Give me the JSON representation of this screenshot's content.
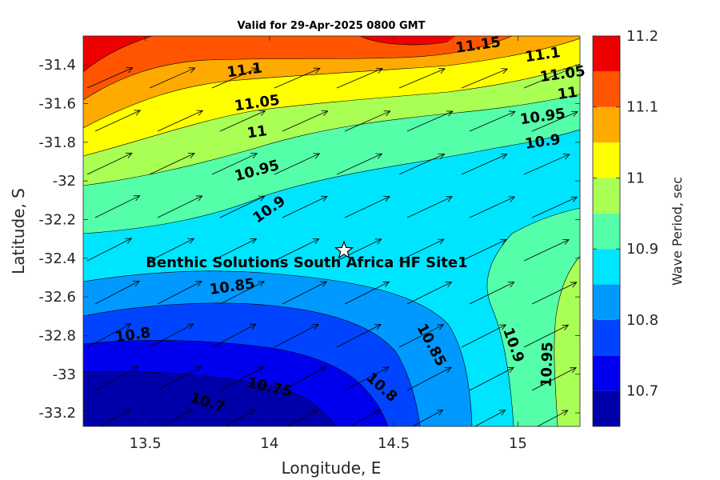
{
  "chart_data": {
    "type": "contour",
    "title": "Valid for 29-Apr-2025 0800 GMT",
    "xlabel": "Longitude, E",
    "ylabel": "Latitude, S",
    "xlim": [
      13.25,
      15.25
    ],
    "ylim": [
      -33.27,
      -31.25
    ],
    "x_ticks": [
      "13.5",
      "14",
      "14.5",
      "15"
    ],
    "x_tick_values": [
      13.5,
      14.0,
      14.5,
      15.0
    ],
    "y_ticks": [
      "-31.4",
      "-31.6",
      "-31.8",
      "-32",
      "-32.2",
      "-32.4",
      "-32.6",
      "-32.8",
      "-33",
      "-33.2"
    ],
    "y_tick_values": [
      -31.4,
      -31.6,
      -31.8,
      -32.0,
      -32.2,
      -32.4,
      -32.6,
      -32.8,
      -33.0,
      -33.2
    ],
    "colorbar": {
      "label": "Wave Period, sec",
      "levels": [
        10.65,
        10.7,
        10.75,
        10.8,
        10.85,
        10.9,
        10.95,
        11.0,
        11.05,
        11.1,
        11.15,
        11.2
      ],
      "colors": [
        "#0000aa",
        "#0000ee",
        "#0044ff",
        "#0099ff",
        "#00e5ff",
        "#55ffaa",
        "#aaff55",
        "#ffff00",
        "#ffaa00",
        "#ff5500",
        "#ee0000"
      ],
      "tick_labels": [
        "10.7",
        "10.8",
        "10.9",
        "11",
        "11.1",
        "11.2"
      ],
      "tick_values": [
        10.7,
        10.8,
        10.9,
        11.0,
        11.1,
        11.2
      ]
    },
    "contour_labels": [
      {
        "text": "11.15",
        "lon": 14.84,
        "lat": -31.3
      },
      {
        "text": "11.1",
        "lon": 13.9,
        "lat": -31.43
      },
      {
        "text": "11.1",
        "lon": 15.1,
        "lat": -31.35
      },
      {
        "text": "11.05",
        "lon": 13.95,
        "lat": -31.6
      },
      {
        "text": "11.05",
        "lon": 15.18,
        "lat": -31.45
      },
      {
        "text": "11",
        "lon": 13.95,
        "lat": -31.75
      },
      {
        "text": "11",
        "lon": 15.2,
        "lat": -31.55
      },
      {
        "text": "10.95",
        "lon": 13.95,
        "lat": -31.95
      },
      {
        "text": "10.95",
        "lon": 15.1,
        "lat": -31.67
      },
      {
        "text": "10.9",
        "lon": 14.0,
        "lat": -32.15
      },
      {
        "text": "10.9",
        "lon": 15.1,
        "lat": -31.8
      },
      {
        "text": "10.85",
        "lon": 13.85,
        "lat": -32.55
      },
      {
        "text": "10.8",
        "lon": 13.45,
        "lat": -32.8
      },
      {
        "text": "10.75",
        "lon": 14.0,
        "lat": -33.07
      },
      {
        "text": "10.7",
        "lon": 13.75,
        "lat": -33.15
      },
      {
        "text": "10.8",
        "lon": 14.45,
        "lat": -33.07
      },
      {
        "text": "10.85",
        "lon": 14.65,
        "lat": -32.85
      },
      {
        "text": "10.9",
        "lon": 14.98,
        "lat": -32.85
      },
      {
        "text": "10.95",
        "lon": 15.12,
        "lat": -32.95
      }
    ],
    "site": {
      "label": "Benthic Solutions South Africa HF Site1",
      "lon": 14.3,
      "lat": -32.36,
      "marker": "star"
    },
    "vector_direction": "northeast",
    "grid": false
  }
}
